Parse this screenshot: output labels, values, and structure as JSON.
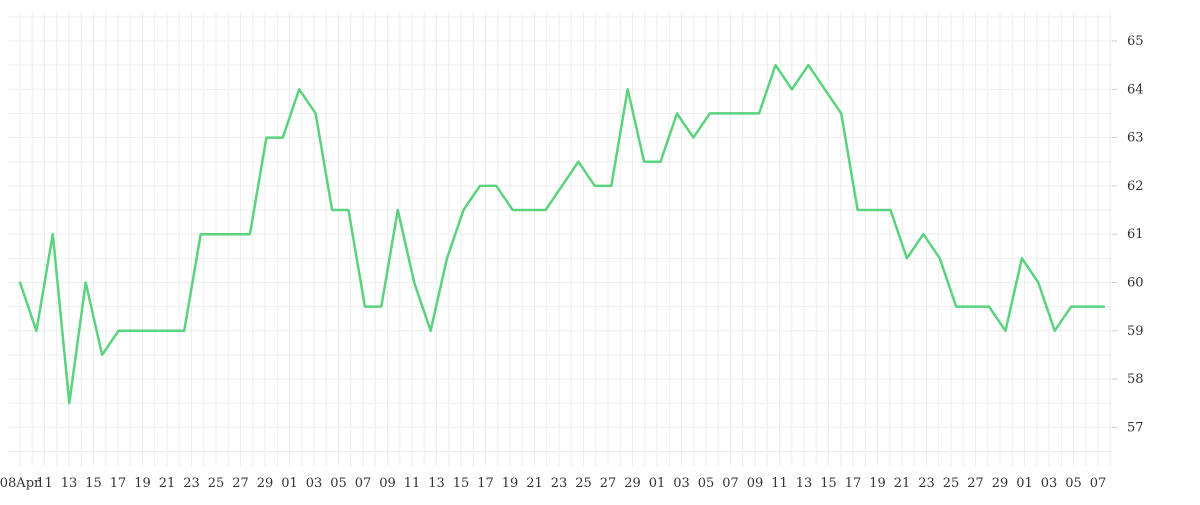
{
  "chart_data": {
    "type": "line",
    "title": "",
    "xlabel": "",
    "ylabel": "",
    "y_axis_position": "right",
    "ylim": [
      56.2,
      65.6
    ],
    "y_ticks": [
      57,
      58,
      59,
      60,
      61,
      62,
      63,
      64,
      65
    ],
    "x_tick_labels": [
      "08Apr",
      "11",
      "13",
      "15",
      "17",
      "19",
      "21",
      "23",
      "25",
      "27",
      "29",
      "01",
      "03",
      "05",
      "07",
      "09",
      "11",
      "13",
      "15",
      "17",
      "19",
      "21",
      "23",
      "25",
      "27",
      "29",
      "01",
      "03",
      "05",
      "07",
      "09",
      "11",
      "13",
      "15",
      "17",
      "19",
      "21",
      "23",
      "25",
      "27",
      "29",
      "01",
      "03",
      "05",
      "07"
    ],
    "grid": true,
    "line_color": "#5bd27e",
    "grid_color": "#eeeeee",
    "series": [
      {
        "name": "",
        "values": [
          60.0,
          59.0,
          61.0,
          57.5,
          60.0,
          58.5,
          59.0,
          59.0,
          59.0,
          59.0,
          59.0,
          61.0,
          61.0,
          61.0,
          61.0,
          63.0,
          63.0,
          64.0,
          63.5,
          61.5,
          61.5,
          59.5,
          59.5,
          61.5,
          60.0,
          59.0,
          60.5,
          61.5,
          62.0,
          62.0,
          61.5,
          61.5,
          61.5,
          62.0,
          62.5,
          62.0,
          62.0,
          64.0,
          62.5,
          62.5,
          63.5,
          63.0,
          63.5,
          63.5,
          63.5,
          63.5,
          64.5,
          64.0,
          64.5,
          64.0,
          63.5,
          61.5,
          61.5,
          61.5,
          60.5,
          61.0,
          60.5,
          59.5,
          59.5,
          59.5,
          59.0,
          60.5,
          60.0,
          59.0,
          59.5,
          59.5,
          59.5
        ]
      }
    ]
  }
}
